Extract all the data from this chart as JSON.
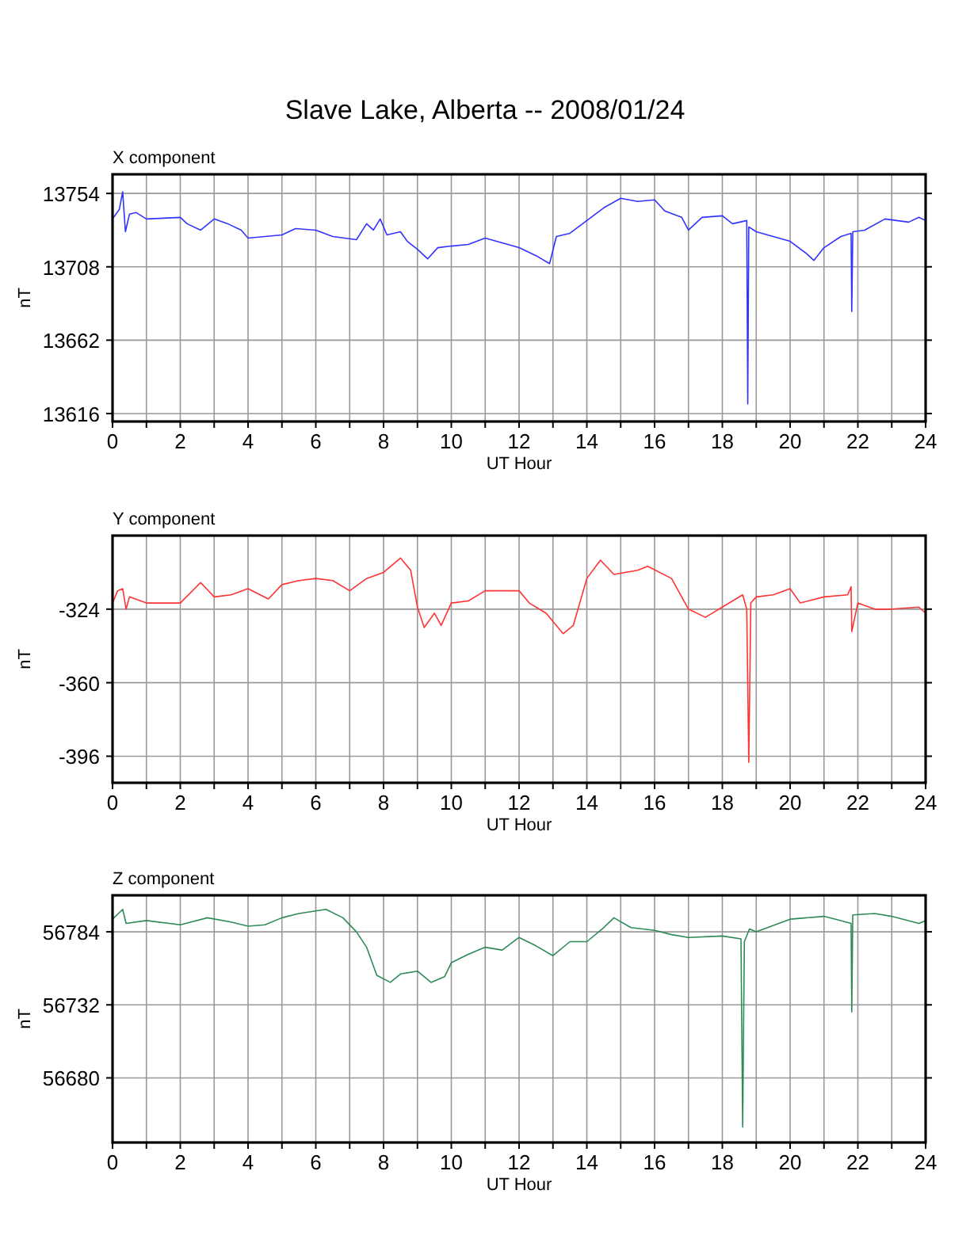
{
  "chart_data": [
    {
      "type": "line",
      "title": "Slave Lake, Alberta -- 2008/01/24",
      "subtitle": "X component",
      "xlabel": "UT Hour",
      "ylabel": "nT",
      "grid": true,
      "marker": "none",
      "line_style": "solid",
      "xlim": [
        0,
        24
      ],
      "xticks": [
        0,
        {
          "value": 1,
          "label": null
        },
        2,
        {
          "value": 3,
          "label": null
        },
        4,
        {
          "value": 5,
          "label": null
        },
        6,
        {
          "value": 7,
          "label": null
        },
        8,
        {
          "value": 9,
          "label": null
        },
        10,
        {
          "value": 11,
          "label": null
        },
        12,
        {
          "value": 13,
          "label": null
        },
        14,
        {
          "value": 15,
          "label": null
        },
        16,
        {
          "value": 17,
          "label": null
        },
        18,
        {
          "value": 19,
          "label": null
        },
        20,
        {
          "value": 21,
          "label": null
        },
        22,
        {
          "value": 23,
          "label": null
        },
        24
      ],
      "ylim": [
        13611,
        13766
      ],
      "yticks": [
        13616,
        13662,
        13708,
        13754
      ],
      "series": [
        {
          "color": "#3333ff",
          "x": [
            0,
            0.2,
            0.3,
            0.38,
            0.5,
            0.7,
            1,
            2,
            2.2,
            2.6,
            3,
            3.4,
            3.8,
            4,
            5,
            5.4,
            6,
            6.5,
            7.2,
            7.5,
            7.7,
            7.9,
            8.1,
            8.5,
            8.7,
            9,
            9.3,
            9.6,
            10,
            10.5,
            11,
            11.5,
            12,
            12.5,
            12.9,
            13.1,
            13.5,
            14,
            14.5,
            15,
            15.5,
            16,
            16.3,
            16.8,
            17,
            17.4,
            18,
            18.3,
            18.72,
            18.75,
            18.78,
            19,
            19.5,
            20,
            20.5,
            20.7,
            21,
            21.5,
            21.8,
            21.82,
            21.85,
            22.2,
            22.8,
            23.5,
            23.8,
            24
          ],
          "values": [
            13738,
            13744,
            13755,
            13730,
            13741,
            13742,
            13738,
            13739,
            13735,
            13731,
            13738,
            13735,
            13731,
            13726,
            13728,
            13732,
            13731,
            13727,
            13725,
            13735,
            13731,
            13738,
            13728,
            13730,
            13724,
            13719,
            13713,
            13720,
            13721,
            13722,
            13726,
            13723,
            13720,
            13715,
            13710,
            13727,
            13729,
            13737,
            13745,
            13751,
            13749,
            13750,
            13743,
            13739,
            13731,
            13739,
            13740,
            13735,
            13737,
            13622,
            13733,
            13730,
            13727,
            13724,
            13716,
            13712,
            13720,
            13727,
            13729,
            13680,
            13730,
            13731,
            13738,
            13736,
            13739,
            13737
          ]
        }
      ]
    },
    {
      "type": "line",
      "title": "Y component",
      "xlabel": "UT Hour",
      "ylabel": "nT",
      "grid": true,
      "marker": "none",
      "line_style": "solid",
      "xlim": [
        0,
        24
      ],
      "xticks": [
        0,
        {
          "value": 1,
          "label": null
        },
        2,
        {
          "value": 3,
          "label": null
        },
        4,
        {
          "value": 5,
          "label": null
        },
        6,
        {
          "value": 7,
          "label": null
        },
        8,
        {
          "value": 9,
          "label": null
        },
        10,
        {
          "value": 11,
          "label": null
        },
        12,
        {
          "value": 13,
          "label": null
        },
        14,
        {
          "value": 15,
          "label": null
        },
        16,
        {
          "value": 17,
          "label": null
        },
        18,
        {
          "value": 19,
          "label": null
        },
        20,
        {
          "value": 21,
          "label": null
        },
        22,
        {
          "value": 23,
          "label": null
        },
        24
      ],
      "ylim": [
        -409,
        -288
      ],
      "yticks": [
        -396,
        -360,
        -324
      ],
      "series": [
        {
          "color": "#ff3333",
          "x": [
            0,
            0.15,
            0.3,
            0.4,
            0.5,
            1,
            2,
            2.6,
            3,
            3.5,
            4,
            4.6,
            5,
            5.5,
            6,
            6.5,
            7,
            7.5,
            8,
            8.5,
            8.8,
            9,
            9.2,
            9.5,
            9.7,
            10,
            10.5,
            11,
            12,
            12.3,
            12.8,
            13.3,
            13.6,
            14,
            14.4,
            14.8,
            15.5,
            15.8,
            16.5,
            17,
            17.5,
            17.8,
            18,
            18.6,
            18.72,
            18.78,
            18.84,
            19,
            19.5,
            20,
            20.3,
            21,
            21.7,
            21.8,
            21.82,
            22,
            22.5,
            23,
            23.8,
            24
          ],
          "values": [
            -321,
            -315,
            -314,
            -324,
            -318,
            -321,
            -321,
            -311,
            -318,
            -317,
            -314,
            -319,
            -312,
            -310,
            -309,
            -310,
            -315,
            -309,
            -306,
            -299,
            -305,
            -323,
            -333,
            -326,
            -332,
            -321,
            -320,
            -315,
            -315,
            -321,
            -326,
            -336,
            -332,
            -309,
            -300,
            -307,
            -305,
            -303,
            -309,
            -324,
            -328,
            -325,
            -323,
            -317,
            -324,
            -399,
            -321,
            -318,
            -317,
            -314,
            -321,
            -318,
            -317,
            -313,
            -335,
            -321,
            -324,
            -324,
            -323,
            -326
          ]
        }
      ]
    },
    {
      "type": "line",
      "title": "Z component",
      "xlabel": "UT Hour",
      "ylabel": "nT",
      "grid": true,
      "marker": "none",
      "line_style": "solid",
      "xlim": [
        0,
        24
      ],
      "xticks": [
        0,
        {
          "value": 1,
          "label": null
        },
        2,
        {
          "value": 3,
          "label": null
        },
        4,
        {
          "value": 5,
          "label": null
        },
        6,
        {
          "value": 7,
          "label": null
        },
        8,
        {
          "value": 9,
          "label": null
        },
        10,
        {
          "value": 11,
          "label": null
        },
        12,
        {
          "value": 13,
          "label": null
        },
        14,
        {
          "value": 15,
          "label": null
        },
        16,
        {
          "value": 17,
          "label": null
        },
        18,
        {
          "value": 19,
          "label": null
        },
        20,
        {
          "value": 21,
          "label": null
        },
        22,
        {
          "value": 23,
          "label": null
        },
        24
      ],
      "ylim": [
        56634,
        56810
      ],
      "yticks": [
        56680,
        56732,
        56784
      ],
      "series": [
        {
          "color": "#2e8b57",
          "x": [
            0,
            0.3,
            0.4,
            1,
            2,
            2.8,
            3.5,
            4,
            4.5,
            5,
            5.5,
            6.3,
            6.8,
            7.2,
            7.5,
            7.8,
            8.2,
            8.5,
            9,
            9.4,
            9.8,
            10,
            10.5,
            11,
            11.5,
            12,
            12.5,
            13,
            13.5,
            14,
            14.5,
            14.8,
            15.3,
            16,
            16.5,
            17,
            18,
            18.55,
            18.6,
            18.65,
            18.8,
            19,
            20,
            21,
            21.5,
            21.8,
            21.82,
            21.85,
            22.5,
            23,
            23.8,
            24
          ],
          "values": [
            56793,
            56800,
            56790,
            56792,
            56789,
            56794,
            56791,
            56788,
            56789,
            56794,
            56797,
            56800,
            56794,
            56784,
            56773,
            56753,
            56748,
            56754,
            56756,
            56748,
            56752,
            56762,
            56768,
            56773,
            56771,
            56780,
            56774,
            56767,
            56777,
            56777,
            56787,
            56794,
            56787,
            56785,
            56782,
            56780,
            56781,
            56779,
            56645,
            56777,
            56786,
            56784,
            56793,
            56795,
            56792,
            56790,
            56727,
            56796,
            56797,
            56795,
            56790,
            56792
          ]
        }
      ]
    }
  ]
}
